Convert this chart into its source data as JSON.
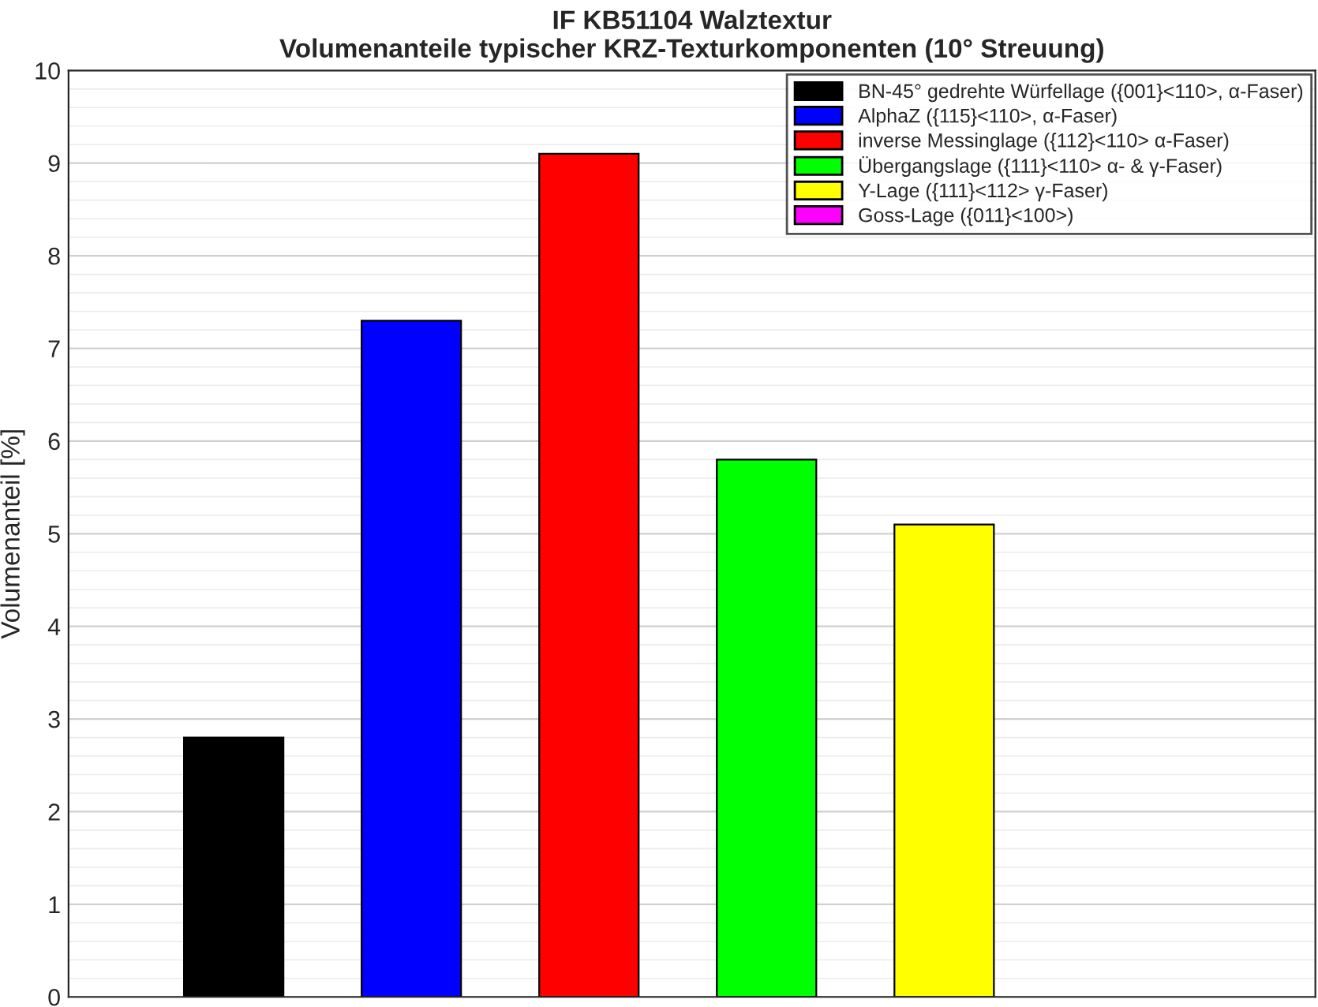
{
  "chart_data": {
    "type": "bar",
    "title": "IF KB51104 Walztextur",
    "subtitle": "Volumenanteile typischer KRZ-Texturkomponenten (10° Streuung)",
    "ylabel": "Volumenanteil [%]",
    "categories": [
      null,
      null,
      null,
      null,
      null,
      null
    ],
    "series": [
      {
        "name": "BN-45° gedrehte Würfellage ({001}<110>, α-Faser)",
        "color": "#000000",
        "values": [
          2.8,
          null,
          null,
          null,
          null,
          null
        ]
      },
      {
        "name": "AlphaZ ({115}<110>, α-Faser)",
        "color": "#0000ff",
        "values": [
          null,
          7.3,
          null,
          null,
          null,
          null
        ]
      },
      {
        "name": "inverse Messinglage ({112}<110> α-Faser)",
        "color": "#ff0000",
        "values": [
          null,
          null,
          9.1,
          null,
          null,
          null
        ]
      },
      {
        "name": "Übergangslage ({111}<110> α- & γ-Faser)",
        "color": "#00ff00",
        "values": [
          null,
          null,
          null,
          5.8,
          null,
          null
        ]
      },
      {
        "name": "Y-Lage ({111}<112> γ-Faser)",
        "color": "#ffff00",
        "values": [
          null,
          null,
          null,
          null,
          5.1,
          null
        ]
      },
      {
        "name": "Goss-Lage ({011}<100>)",
        "color": "#ff00ff",
        "values": [
          null,
          null,
          null,
          null,
          null,
          null
        ]
      }
    ],
    "ylim": [
      0,
      10
    ],
    "yticks": [
      0,
      1,
      2,
      3,
      4,
      5,
      6,
      7,
      8,
      9,
      10
    ],
    "grid": "y",
    "legend": "top right",
    "tick_labels": "y"
  }
}
